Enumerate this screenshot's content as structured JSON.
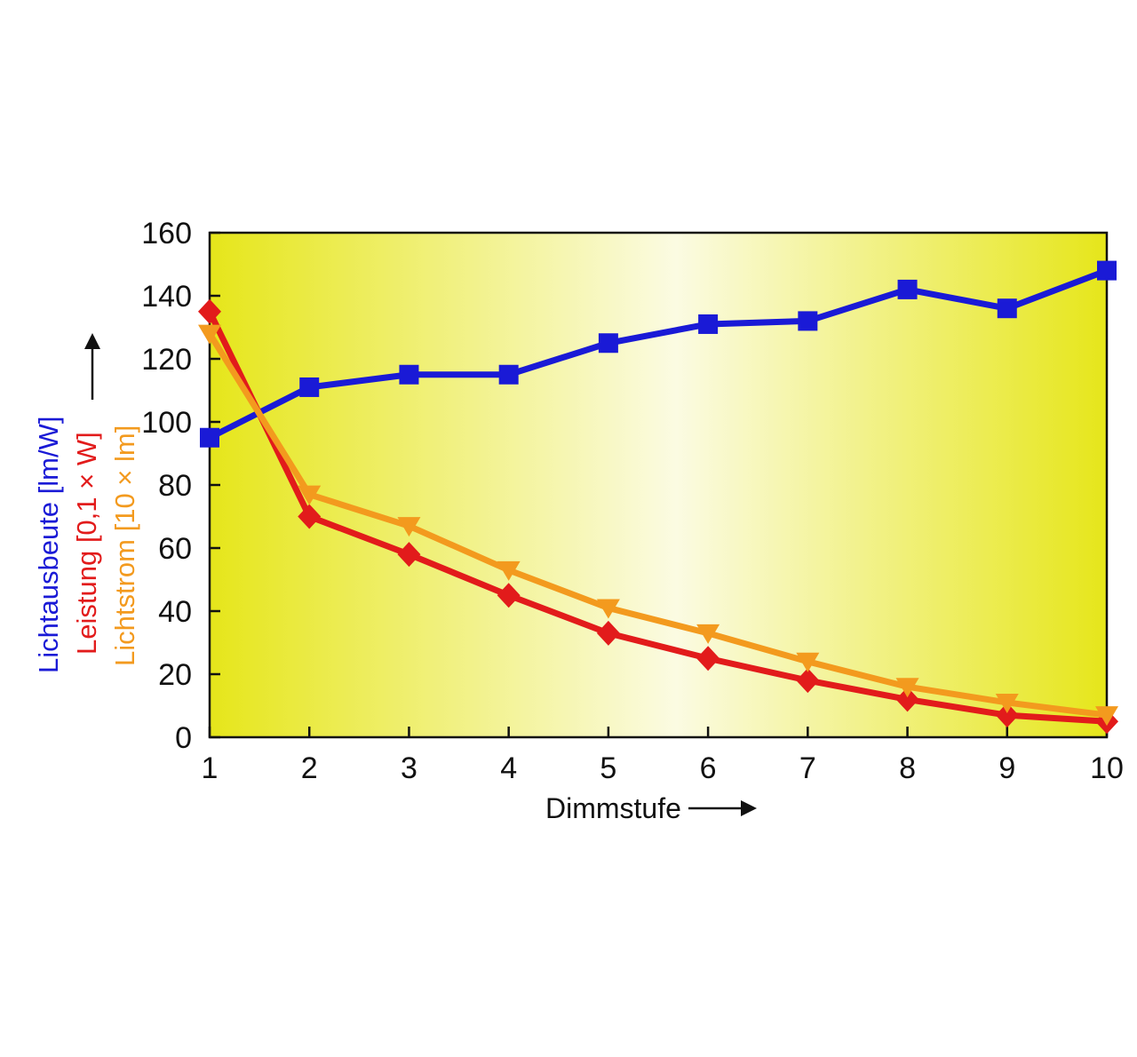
{
  "chart_data": {
    "type": "line",
    "x": [
      1,
      2,
      3,
      4,
      5,
      6,
      7,
      8,
      9,
      10
    ],
    "xlabel": "Dimmstufe",
    "ylim": [
      0,
      160
    ],
    "yticks": [
      0,
      20,
      40,
      60,
      80,
      100,
      120,
      140,
      160
    ],
    "xlim": [
      1,
      10
    ],
    "grid": false,
    "legend": "none",
    "background": "yellow gradient, lightest in the middle",
    "colors": {
      "plot_edge": "#e6e61a",
      "plot_center": "#fbfbe2"
    },
    "series": [
      {
        "name": "Lichtausbeute [lm/W]",
        "color": "#1a1ad6",
        "marker": "square",
        "values": [
          95,
          111,
          115,
          115,
          125,
          131,
          132,
          142,
          136,
          148
        ]
      },
      {
        "name": "Leistung [0,1 × W]",
        "color": "#e21b1b",
        "marker": "diamond",
        "values": [
          135,
          70,
          58,
          45,
          33,
          25,
          18,
          12,
          7,
          5
        ]
      },
      {
        "name": "Lichtstrom [10 × lm]",
        "color": "#f39a1e",
        "marker": "triangle-down",
        "values": [
          128,
          77,
          67,
          53,
          41,
          33,
          24,
          16,
          11,
          7
        ]
      }
    ]
  }
}
